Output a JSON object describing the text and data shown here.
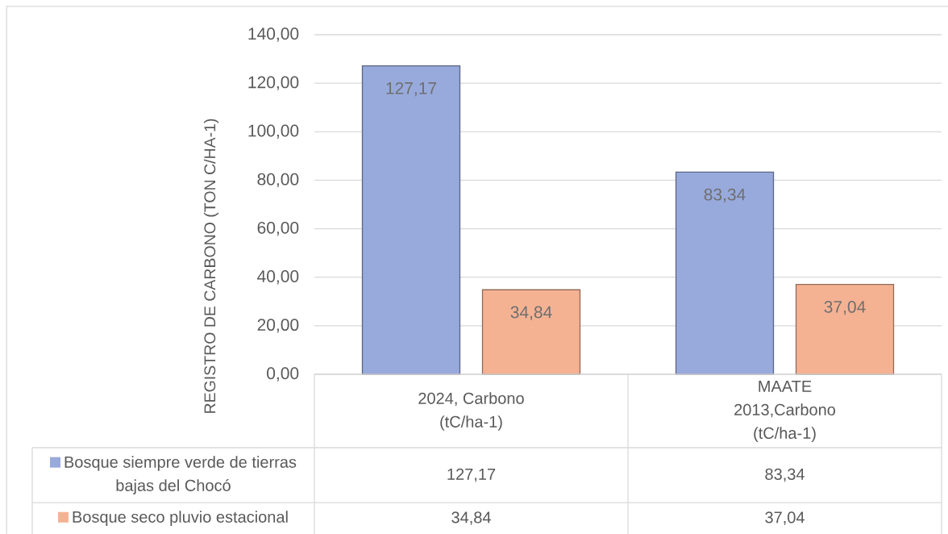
{
  "chart_data": {
    "type": "bar",
    "ylabel": "REGISTRO DE CARBONO (TON C/HA-1)",
    "categories": [
      "2024, Carbono (tC/ha-1)",
      "MAATE 2013,Carbono (tC/ha-1)"
    ],
    "series": [
      {
        "name": "Bosque siempre verde de tierras bajas del Chocó",
        "color": "#98aadc",
        "values": [
          127.17,
          83.34
        ],
        "value_labels": [
          "127,17",
          "83,34"
        ]
      },
      {
        "name": "Bosque seco pluvio estacional",
        "color": "#f5b293",
        "values": [
          34.84,
          37.04
        ],
        "value_labels": [
          "34,84",
          "37,04"
        ]
      }
    ],
    "ylim": [
      0,
      140
    ],
    "yticks": [
      {
        "value": 0,
        "label": "0,00"
      },
      {
        "value": 20,
        "label": "20,00"
      },
      {
        "value": 40,
        "label": "40,00"
      },
      {
        "value": 60,
        "label": "60,00"
      },
      {
        "value": 80,
        "label": "80,00"
      },
      {
        "value": 100,
        "label": "100,00"
      },
      {
        "value": 120,
        "label": "120,00"
      },
      {
        "value": 140,
        "label": "140,00"
      }
    ],
    "grid": "y",
    "legend": "bottom"
  }
}
